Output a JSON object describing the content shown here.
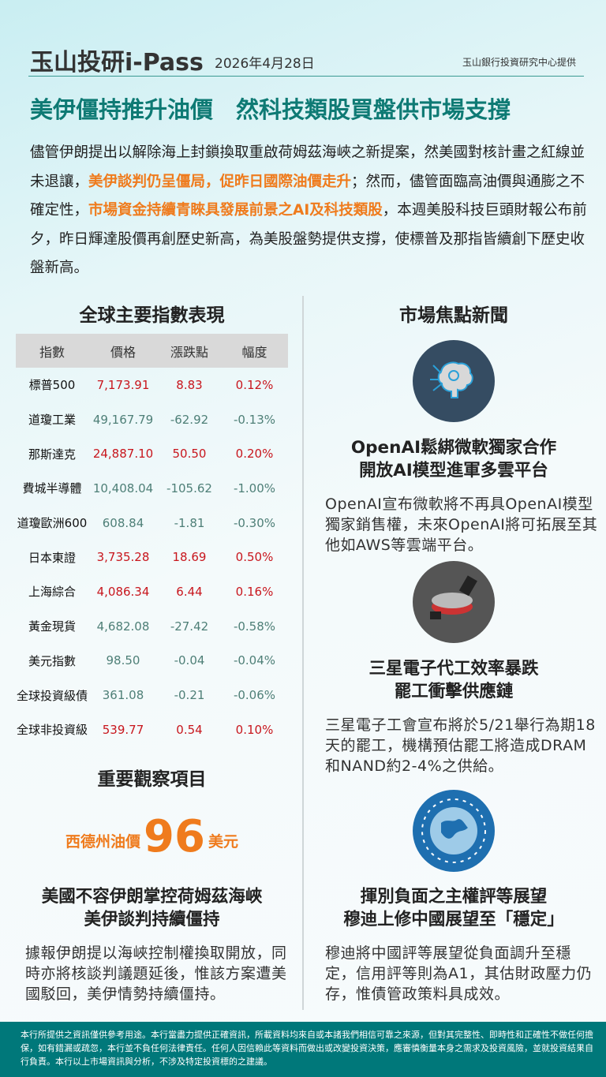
{
  "header": {
    "brand": "玉山投研i-Pass",
    "date": "2026年4月28日",
    "provider": "玉山銀行投資研究中心提供"
  },
  "headline": "美伊僵持推升油價　然科技類股買盤供市場支撐",
  "lead": {
    "p1": "儘管伊朗提出以解除海上封鎖換取重啟荷姆茲海峽之新提案，然美國對核計畫之紅線並未退讓，",
    "h1": "美伊談判仍呈僵局，促昨日國際油價走升",
    "p2": "；然而，儘管面臨高油價與通膨之不確定性，",
    "h2": "市場資金持續青睞具發展前景之AI及科技類股",
    "p3": "，本週美股科技巨頭財報公布前夕，昨日輝達股價再創歷史新高，為美股盤勢提供支撐，使標普及那指皆續創下歷史收盤新高。"
  },
  "indices": {
    "title": "全球主要指數表現",
    "headers": [
      "指數",
      "價格",
      "漲跌點",
      "幅度"
    ],
    "rows": [
      {
        "name": "標普500",
        "price": "7,173.91",
        "chg": "8.83",
        "pct": "0.12%",
        "dir": "up"
      },
      {
        "name": "道瓊工業",
        "price": "49,167.79",
        "chg": "-62.92",
        "pct": "-0.13%",
        "dir": "dn"
      },
      {
        "name": "那斯達克",
        "price": "24,887.10",
        "chg": "50.50",
        "pct": "0.20%",
        "dir": "up"
      },
      {
        "name": "費城半導體",
        "price": "10,408.04",
        "chg": "-105.62",
        "pct": "-1.00%",
        "dir": "dn"
      },
      {
        "name": "道瓊歐洲600",
        "price": "608.84",
        "chg": "-1.81",
        "pct": "-0.30%",
        "dir": "dn"
      },
      {
        "name": "日本東證",
        "price": "3,735.28",
        "chg": "18.69",
        "pct": "0.50%",
        "dir": "up"
      },
      {
        "name": "上海綜合",
        "price": "4,086.34",
        "chg": "6.44",
        "pct": "0.16%",
        "dir": "up"
      },
      {
        "name": "黃金現貨",
        "price": "4,682.08",
        "chg": "-27.42",
        "pct": "-0.58%",
        "dir": "dn"
      },
      {
        "name": "美元指數",
        "price": "98.50",
        "chg": "-0.04",
        "pct": "-0.04%",
        "dir": "dn"
      },
      {
        "name": "全球投資級債",
        "price": "361.08",
        "chg": "-0.21",
        "pct": "-0.06%",
        "dir": "dn"
      },
      {
        "name": "全球非投資級",
        "price": "539.77",
        "chg": "0.54",
        "pct": "0.10%",
        "dir": "up"
      }
    ]
  },
  "watch": {
    "title": "重要觀察項目",
    "label": "西德州油價",
    "value": "96",
    "unit": "美元",
    "subtitle1": "美國不容伊朗掌控荷姆茲海峽",
    "subtitle2": "美伊談判持續僵持",
    "body": "據報伊朗提以海峽控制權換取開放，同時亦將核談判議題延後，惟該方案遭美國駁回，美伊情勢持續僵持。"
  },
  "news": {
    "title": "市場焦點新聞",
    "items": [
      {
        "icon": "ai-brain-icon",
        "t1": "OpenAI鬆綁微軟獨家合作",
        "t2": "開放AI模型進軍多雲平台",
        "body": "OpenAI宣布微軟將不再具OpenAI模型獨家銷售權，未來OpenAI將可拓展至其他如AWS等雲端平台。"
      },
      {
        "icon": "semiconductor-wafer-icon",
        "t1": "三星電子代工效率暴跌",
        "t2": "罷工衝擊供應鏈",
        "body": "三星電子工會宣布將於5/21舉行為期18天的罷工，機構預估罷工將造成DRAM和NAND約2-4%之供給。"
      },
      {
        "icon": "globe-network-icon",
        "t1": "揮別負面之主權評等展望",
        "t2": "穆迪上修中國展望至「穩定」",
        "body": "穆迪將中國評等展望從負面調升至穩定，信用評等則為A1，其估財政壓力仍存，惟債管政策料具成效。"
      }
    ]
  },
  "footer": "本行所提供之資訊僅供參考用途。本行當盡力提供正確資訊，所載資料均來自或本諸我們相信可靠之來源，但對其完整性、即時性和正確性不做任何擔保，如有錯漏或疏忽，本行並不負任何法律責任。任何人因信賴此等資料而做出或改變投資決策，應審慎衡量本身之需求及投資風險，並就投資結果自行負責。本行以上市場資訊與分析，不涉及特定投資標的之建議。",
  "colors": {
    "teal": "#0e7a74",
    "orange": "#ef7b1d",
    "up": "#c8161d",
    "down": "#4e7f77",
    "footer": "#00787a"
  }
}
